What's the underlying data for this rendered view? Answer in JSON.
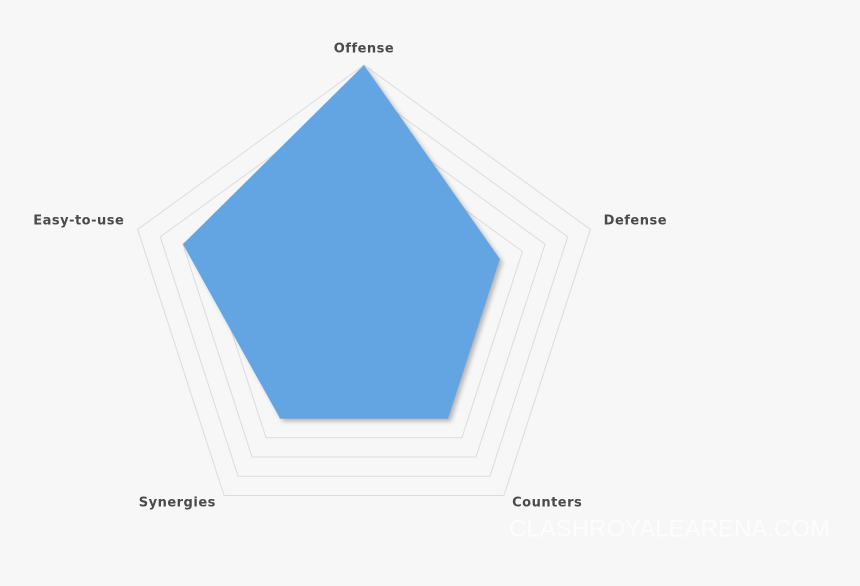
{
  "chart_data": {
    "type": "radar",
    "categories": [
      "Offense",
      "Defense",
      "Counters",
      "Synergies",
      "Easy-to-use"
    ],
    "values": [
      10,
      6,
      6,
      6,
      8
    ],
    "color": "#64a5e2",
    "rlim": [
      0,
      10
    ],
    "rticks": [
      1,
      2,
      3,
      4,
      5,
      6,
      7,
      8,
      9,
      10
    ],
    "grid": true,
    "watermark": "CLASHROYALEARENA.COM"
  }
}
